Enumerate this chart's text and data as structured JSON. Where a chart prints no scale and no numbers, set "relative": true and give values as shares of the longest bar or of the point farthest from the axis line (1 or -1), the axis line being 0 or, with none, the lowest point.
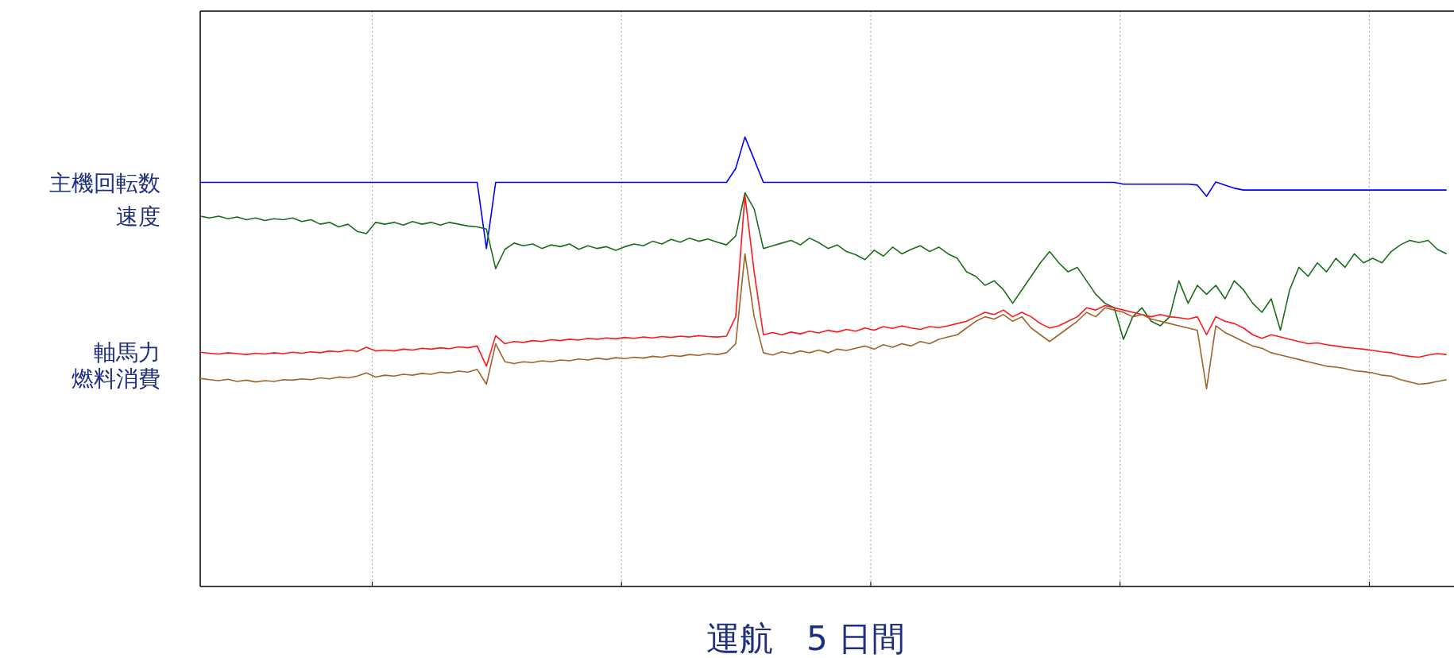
{
  "chart_data": {
    "type": "line",
    "relative": true,
    "xlabel": "運航　5 日間",
    "grid": "x",
    "categories": [
      null,
      null,
      null,
      null,
      null,
      null,
      null,
      null,
      null,
      null,
      null,
      null,
      null,
      null,
      null,
      null,
      null,
      null,
      null,
      null,
      null,
      null,
      null,
      null,
      null,
      null,
      null,
      null,
      null,
      null,
      null,
      null,
      null,
      null,
      null,
      null,
      null,
      null,
      null,
      null,
      null,
      null,
      null,
      null,
      null,
      null,
      null,
      null,
      null,
      null,
      null,
      null,
      null,
      null,
      null,
      null,
      null,
      null,
      null,
      null,
      null,
      null,
      null,
      null,
      null,
      null,
      null,
      null,
      null,
      null,
      null,
      null,
      null,
      null,
      null,
      null,
      null,
      null,
      null,
      null,
      null,
      null,
      null,
      null,
      null,
      null,
      null,
      null,
      null,
      null,
      null,
      null,
      null,
      null,
      null,
      null,
      null,
      null,
      null,
      null,
      null,
      null,
      null,
      null,
      null,
      null,
      null,
      null,
      null,
      null,
      null,
      null,
      null,
      null,
      null,
      null,
      null,
      null,
      null,
      null,
      null,
      null,
      null,
      null,
      null,
      null,
      null,
      null,
      null,
      null,
      null,
      null,
      null,
      null,
      null,
      null
    ],
    "series": [
      {
        "name": "主機回転数",
        "color": "#0000ff",
        "values": [
          0.899,
          0.899,
          0.899,
          0.899,
          0.899,
          0.899,
          0.899,
          0.899,
          0.899,
          0.899,
          0.899,
          0.899,
          0.899,
          0.899,
          0.899,
          0.899,
          0.899,
          0.899,
          0.899,
          0.899,
          0.899,
          0.899,
          0.899,
          0.899,
          0.899,
          0.899,
          0.899,
          0.899,
          0.899,
          0.899,
          0.899,
          0.752,
          0.899,
          0.899,
          0.899,
          0.899,
          0.899,
          0.899,
          0.899,
          0.899,
          0.899,
          0.899,
          0.899,
          0.899,
          0.899,
          0.899,
          0.899,
          0.899,
          0.899,
          0.899,
          0.899,
          0.899,
          0.899,
          0.899,
          0.899,
          0.899,
          0.899,
          0.899,
          0.93,
          1.0,
          0.95,
          0.899,
          0.899,
          0.899,
          0.899,
          0.899,
          0.899,
          0.899,
          0.899,
          0.899,
          0.899,
          0.899,
          0.899,
          0.899,
          0.899,
          0.899,
          0.899,
          0.899,
          0.899,
          0.899,
          0.899,
          0.899,
          0.899,
          0.899,
          0.899,
          0.899,
          0.899,
          0.899,
          0.899,
          0.899,
          0.899,
          0.899,
          0.899,
          0.899,
          0.899,
          0.899,
          0.899,
          0.899,
          0.899,
          0.899,
          0.895,
          0.895,
          0.895,
          0.895,
          0.895,
          0.895,
          0.895,
          0.895,
          0.893,
          0.868,
          0.9,
          0.893,
          0.886,
          0.882,
          0.882,
          0.882,
          0.882,
          0.882,
          0.882,
          0.882,
          0.882,
          0.882,
          0.882,
          0.882,
          0.882,
          0.882,
          0.882,
          0.882,
          0.882,
          0.882,
          0.882,
          0.882,
          0.882,
          0.882,
          0.882,
          0.882
        ]
      },
      {
        "name": "速度",
        "color": "#1a6e1a",
        "values": [
          0.824,
          0.82,
          0.824,
          0.818,
          0.822,
          0.816,
          0.82,
          0.814,
          0.818,
          0.816,
          0.82,
          0.812,
          0.816,
          0.806,
          0.81,
          0.8,
          0.806,
          0.79,
          0.785,
          0.81,
          0.806,
          0.81,
          0.804,
          0.812,
          0.806,
          0.81,
          0.804,
          0.81,
          0.806,
          0.802,
          0.8,
          0.795,
          0.707,
          0.75,
          0.764,
          0.758,
          0.762,
          0.752,
          0.76,
          0.756,
          0.762,
          0.75,
          0.758,
          0.752,
          0.756,
          0.748,
          0.756,
          0.762,
          0.758,
          0.768,
          0.762,
          0.772,
          0.766,
          0.775,
          0.768,
          0.773,
          0.766,
          0.76,
          0.78,
          0.876,
          0.84,
          0.752,
          0.758,
          0.764,
          0.77,
          0.76,
          0.775,
          0.765,
          0.752,
          0.76,
          0.745,
          0.738,
          0.727,
          0.748,
          0.735,
          0.755,
          0.74,
          0.75,
          0.758,
          0.745,
          0.755,
          0.74,
          0.73,
          0.7,
          0.69,
          0.67,
          0.68,
          0.66,
          0.63,
          0.66,
          0.69,
          0.72,
          0.745,
          0.72,
          0.7,
          0.71,
          0.68,
          0.65,
          0.63,
          0.62,
          0.55,
          0.6,
          0.62,
          0.59,
          0.58,
          0.6,
          0.68,
          0.63,
          0.67,
          0.65,
          0.67,
          0.64,
          0.68,
          0.66,
          0.63,
          0.61,
          0.64,
          0.57,
          0.66,
          0.71,
          0.69,
          0.72,
          0.7,
          0.73,
          0.71,
          0.74,
          0.72,
          0.73,
          0.72,
          0.745,
          0.76,
          0.77,
          0.765,
          0.77,
          0.75,
          0.74
        ]
      },
      {
        "name": "軸馬力",
        "color": "#ff1a1a",
        "values": [
          0.521,
          0.519,
          0.517,
          0.52,
          0.518,
          0.516,
          0.519,
          0.517,
          0.52,
          0.518,
          0.521,
          0.519,
          0.522,
          0.52,
          0.524,
          0.522,
          0.526,
          0.523,
          0.532,
          0.524,
          0.526,
          0.524,
          0.528,
          0.526,
          0.53,
          0.528,
          0.531,
          0.529,
          0.533,
          0.531,
          0.535,
          0.49,
          0.558,
          0.54,
          0.545,
          0.543,
          0.547,
          0.545,
          0.549,
          0.547,
          0.55,
          0.548,
          0.552,
          0.55,
          0.553,
          0.551,
          0.554,
          0.552,
          0.555,
          0.553,
          0.556,
          0.554,
          0.557,
          0.555,
          0.558,
          0.556,
          0.555,
          0.557,
          0.6,
          0.87,
          0.7,
          0.56,
          0.565,
          0.56,
          0.566,
          0.562,
          0.568,
          0.564,
          0.57,
          0.566,
          0.572,
          0.568,
          0.575,
          0.57,
          0.578,
          0.574,
          0.58,
          0.575,
          0.572,
          0.578,
          0.576,
          0.58,
          0.585,
          0.59,
          0.6,
          0.61,
          0.605,
          0.615,
          0.6,
          0.61,
          0.6,
          0.585,
          0.575,
          0.58,
          0.59,
          0.6,
          0.62,
          0.615,
          0.625,
          0.62,
          0.615,
          0.61,
          0.605,
          0.6,
          0.605,
          0.6,
          0.598,
          0.595,
          0.6,
          0.56,
          0.6,
          0.59,
          0.585,
          0.575,
          0.56,
          0.552,
          0.56,
          0.555,
          0.55,
          0.545,
          0.54,
          0.542,
          0.538,
          0.535,
          0.532,
          0.53,
          0.528,
          0.525,
          0.522,
          0.52,
          0.515,
          0.512,
          0.51,
          0.515,
          0.518,
          0.516
        ]
      },
      {
        "name": "燃料消費",
        "color": "#a0642a",
        "values": [
          0.463,
          0.46,
          0.458,
          0.461,
          0.456,
          0.459,
          0.455,
          0.458,
          0.456,
          0.46,
          0.459,
          0.462,
          0.46,
          0.464,
          0.462,
          0.466,
          0.464,
          0.468,
          0.475,
          0.466,
          0.47,
          0.468,
          0.472,
          0.47,
          0.474,
          0.472,
          0.477,
          0.475,
          0.479,
          0.477,
          0.483,
          0.45,
          0.54,
          0.5,
          0.496,
          0.5,
          0.498,
          0.502,
          0.5,
          0.504,
          0.502,
          0.506,
          0.504,
          0.508,
          0.505,
          0.509,
          0.507,
          0.51,
          0.508,
          0.512,
          0.51,
          0.514,
          0.512,
          0.516,
          0.514,
          0.518,
          0.516,
          0.52,
          0.54,
          0.74,
          0.6,
          0.52,
          0.515,
          0.522,
          0.518,
          0.524,
          0.52,
          0.526,
          0.52,
          0.528,
          0.525,
          0.53,
          0.535,
          0.528,
          0.538,
          0.532,
          0.54,
          0.535,
          0.545,
          0.54,
          0.55,
          0.555,
          0.56,
          0.575,
          0.59,
          0.6,
          0.595,
          0.605,
          0.59,
          0.6,
          0.575,
          0.56,
          0.545,
          0.56,
          0.575,
          0.59,
          0.61,
          0.6,
          0.62,
          0.615,
          0.61,
          0.6,
          0.605,
          0.595,
          0.59,
          0.585,
          0.58,
          0.575,
          0.57,
          0.44,
          0.58,
          0.565,
          0.555,
          0.545,
          0.535,
          0.53,
          0.52,
          0.515,
          0.51,
          0.505,
          0.5,
          0.495,
          0.49,
          0.488,
          0.485,
          0.48,
          0.478,
          0.475,
          0.47,
          0.468,
          0.46,
          0.455,
          0.45,
          0.452,
          0.456,
          0.46
        ]
      }
    ]
  }
}
